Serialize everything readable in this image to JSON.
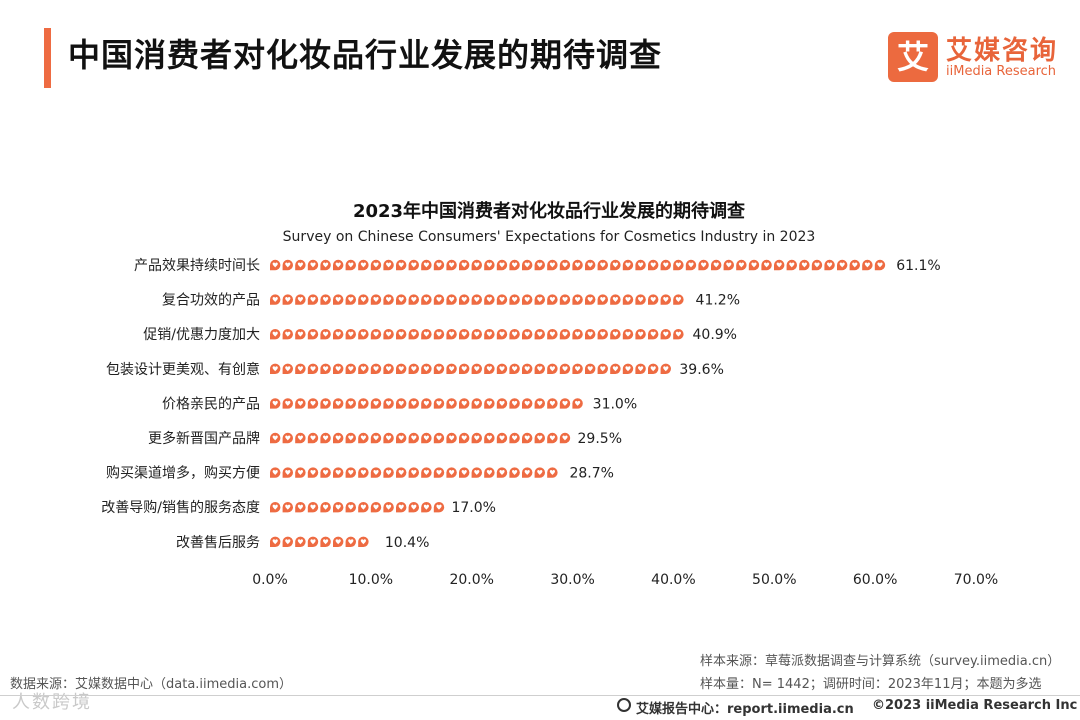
{
  "header": {
    "title": "中国消费者对化妆品行业发展的期待调查",
    "logo_badge": "艾",
    "logo_cn": "艾媒咨询",
    "logo_en": "iiMedia Research"
  },
  "chart_data": {
    "type": "bar",
    "orientation": "horizontal",
    "title": "2023年中国消费者对化妆品行业发展的期待调查",
    "subtitle": "Survey on Chinese Consumers' Expectations for Cosmetics Industry in 2023",
    "categories": [
      "产品效果持续时间长",
      "复合功效的产品",
      "促销/优惠力度加大",
      "包装设计更美观、有创意",
      "价格亲民的产品",
      "更多新晋国产品牌",
      "购买渠道增多，购买方便",
      "改善导购/销售的服务态度",
      "改善售后服务"
    ],
    "values": [
      61.1,
      41.2,
      40.9,
      39.6,
      31.0,
      29.5,
      28.7,
      17.0,
      10.4
    ],
    "value_labels": [
      "61.1%",
      "41.2%",
      "40.9%",
      "39.6%",
      "31.0%",
      "29.5%",
      "28.7%",
      "17.0%",
      "10.4%"
    ],
    "xlim": [
      0,
      70
    ],
    "xticks": [
      "0.0%",
      "10.0%",
      "20.0%",
      "30.0%",
      "40.0%",
      "50.0%",
      "60.0%",
      "70.0%"
    ],
    "grid": false,
    "marker": "heart-drop",
    "color": "#ee6b42"
  },
  "footer": {
    "source_left": "数据来源：艾媒数据中心（data.iimedia.com）",
    "sample_source": "样本来源：草莓派数据调查与计算系统（survey.iimedia.cn）",
    "sample_info": "样本量：N= 1442；调研时间：2023年11月；本题为多选",
    "report_center": "艾媒报告中心：report.iimedia.cn",
    "copyright": "©2023  iiMedia Research  Inc",
    "watermark": "人数跨境"
  }
}
